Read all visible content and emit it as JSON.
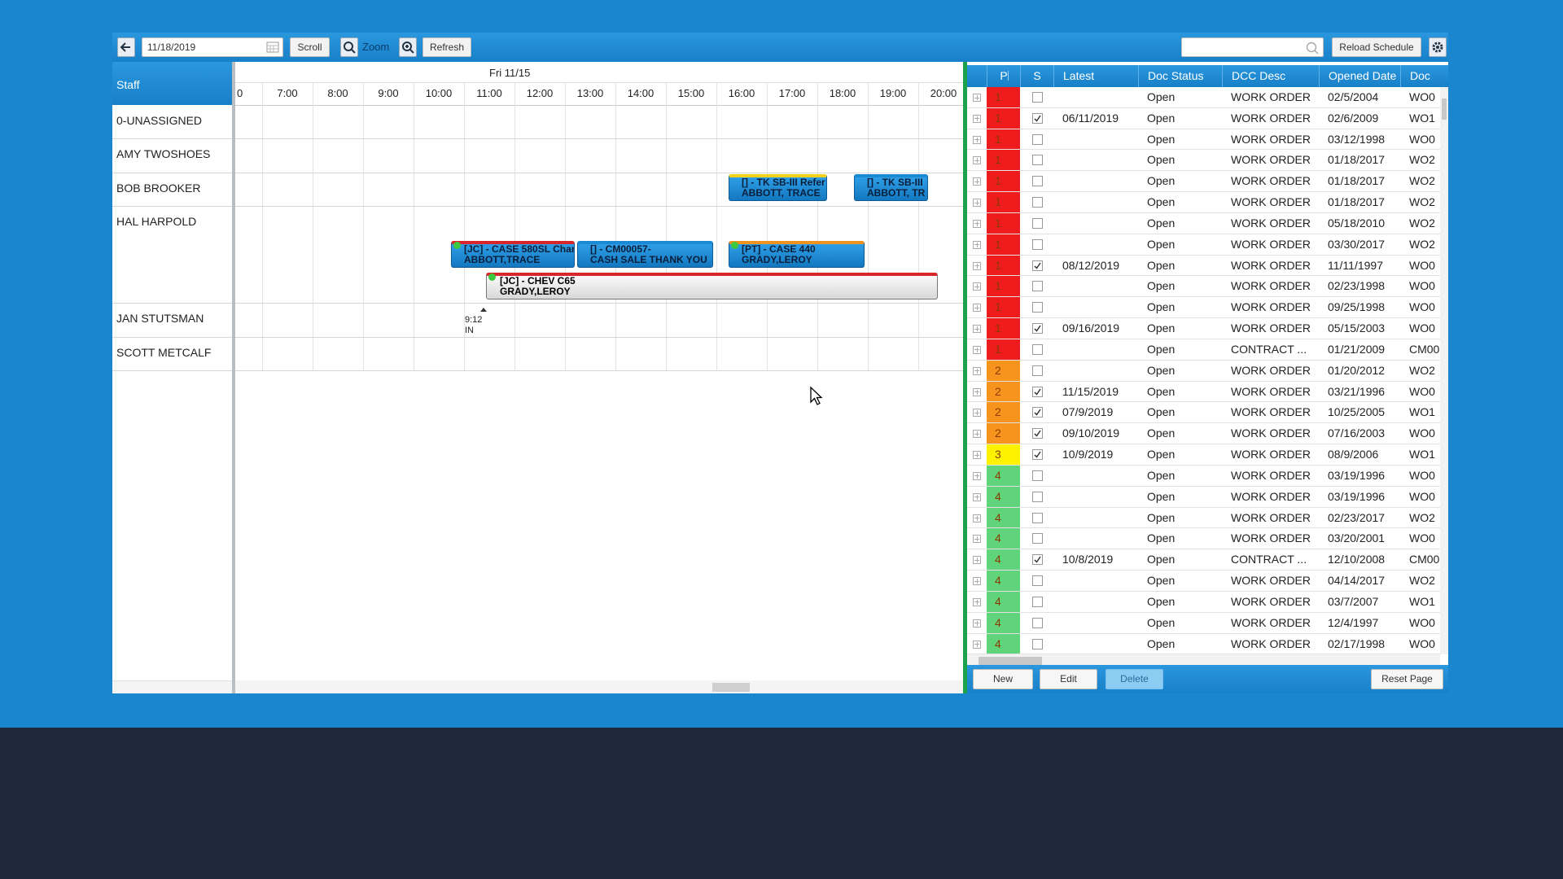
{
  "toolbar": {
    "date": "11/18/2019",
    "scroll": "Scroll",
    "zoom": "Zoom",
    "refresh": "Refresh",
    "reload": "Reload Schedule"
  },
  "schedule": {
    "staff_header": "Staff",
    "day": "Fri 11/15",
    "hours": [
      "0",
      "7:00",
      "8:00",
      "9:00",
      "10:00",
      "11:00",
      "12:00",
      "13:00",
      "14:00",
      "15:00",
      "16:00",
      "17:00",
      "18:00",
      "19:00",
      "20:00"
    ],
    "staff": [
      "0-UNASSIGNED",
      "AMY TWOSHOES",
      "BOB BROOKER",
      "HAL HARPOLD",
      "JAN STUTSMAN",
      "SCOTT METCALF"
    ],
    "events": [
      {
        "line1": "[] - TK SB-III Refer",
        "line2": "ABBOTT, TRACE",
        "top_color": "#f2d21b",
        "style": "blue"
      },
      {
        "line1": "[] - TK SB-III",
        "line2": "ABBOTT, TR",
        "top_color": "#1a8ad4",
        "style": "blue"
      },
      {
        "line1": "[JC] - CASE 580SL Char",
        "line2": "ABBOTT,TRACE",
        "top_color": "#d8262b",
        "style": "blue"
      },
      {
        "line1": "[] - CM00057-",
        "line2": "CASH SALE THANK YOU",
        "top_color": "#1a8ad4",
        "style": "blue"
      },
      {
        "line1": "[PT] - CASE 440",
        "line2": "GRADY,LEROY",
        "top_color": "#f0921e",
        "style": "blue"
      },
      {
        "line1": "[JC] - CHEV C65",
        "line2": "GRADY,LEROY",
        "top_color": "#d8262b",
        "style": "white"
      }
    ],
    "marker": {
      "time": "9:12",
      "label": "IN"
    }
  },
  "table": {
    "columns": [
      "P",
      "S",
      "Latest",
      "Doc Status",
      "DCC Desc",
      "Opened Date",
      "Doc"
    ],
    "priority_colors": {
      "1": "#ee1c1c",
      "2": "#f7941d",
      "3": "#fff200",
      "4": "#5fd47b"
    },
    "rows": [
      {
        "p": "1",
        "checked": false,
        "status": "Open",
        "desc": "WORK ORDER",
        "opened": "02/5/2004",
        "doc": "WO0"
      },
      {
        "p": "1",
        "checked": true,
        "latest": "06/11/2019",
        "status": "Open",
        "desc": "WORK ORDER",
        "opened": "02/6/2009",
        "doc": "WO1"
      },
      {
        "p": "1",
        "checked": false,
        "status": "Open",
        "desc": "WORK ORDER",
        "opened": "03/12/1998",
        "doc": "WO0"
      },
      {
        "p": "1",
        "checked": false,
        "status": "Open",
        "desc": "WORK ORDER",
        "opened": "01/18/2017",
        "doc": "WO2"
      },
      {
        "p": "1",
        "checked": false,
        "status": "Open",
        "desc": "WORK ORDER",
        "opened": "01/18/2017",
        "doc": "WO2"
      },
      {
        "p": "1",
        "checked": false,
        "status": "Open",
        "desc": "WORK ORDER",
        "opened": "01/18/2017",
        "doc": "WO2"
      },
      {
        "p": "1",
        "checked": false,
        "status": "Open",
        "desc": "WORK ORDER",
        "opened": "05/18/2010",
        "doc": "WO2"
      },
      {
        "p": "1",
        "checked": false,
        "status": "Open",
        "desc": "WORK ORDER",
        "opened": "03/30/2017",
        "doc": "WO2"
      },
      {
        "p": "1",
        "checked": true,
        "latest": "08/12/2019",
        "status": "Open",
        "desc": "WORK ORDER",
        "opened": "11/11/1997",
        "doc": "WO0"
      },
      {
        "p": "1",
        "checked": false,
        "status": "Open",
        "desc": "WORK ORDER",
        "opened": "02/23/1998",
        "doc": "WO0"
      },
      {
        "p": "1",
        "checked": false,
        "status": "Open",
        "desc": "WORK ORDER",
        "opened": "09/25/1998",
        "doc": "WO0"
      },
      {
        "p": "1",
        "checked": true,
        "latest": "09/16/2019",
        "status": "Open",
        "desc": "WORK ORDER",
        "opened": "05/15/2003",
        "doc": "WO0"
      },
      {
        "p": "1",
        "checked": false,
        "status": "Open",
        "desc": "CONTRACT ...",
        "opened": "01/21/2009",
        "doc": "CM00"
      },
      {
        "p": "2",
        "checked": false,
        "status": "Open",
        "desc": "WORK ORDER",
        "opened": "01/20/2012",
        "doc": "WO2"
      },
      {
        "p": "2",
        "checked": true,
        "latest": "11/15/2019",
        "status": "Open",
        "desc": "WORK ORDER",
        "opened": "03/21/1996",
        "doc": "WO0"
      },
      {
        "p": "2",
        "checked": true,
        "latest": "07/9/2019",
        "status": "Open",
        "desc": "WORK ORDER",
        "opened": "10/25/2005",
        "doc": "WO1"
      },
      {
        "p": "2",
        "checked": true,
        "latest": "09/10/2019",
        "status": "Open",
        "desc": "WORK ORDER",
        "opened": "07/16/2003",
        "doc": "WO0"
      },
      {
        "p": "3",
        "checked": true,
        "latest": "10/9/2019",
        "status": "Open",
        "desc": "WORK ORDER",
        "opened": "08/9/2006",
        "doc": "WO1"
      },
      {
        "p": "4",
        "checked": false,
        "status": "Open",
        "desc": "WORK ORDER",
        "opened": "03/19/1996",
        "doc": "WO0"
      },
      {
        "p": "4",
        "checked": false,
        "status": "Open",
        "desc": "WORK ORDER",
        "opened": "03/19/1996",
        "doc": "WO0"
      },
      {
        "p": "4",
        "checked": false,
        "status": "Open",
        "desc": "WORK ORDER",
        "opened": "02/23/2017",
        "doc": "WO2"
      },
      {
        "p": "4",
        "checked": false,
        "status": "Open",
        "desc": "WORK ORDER",
        "opened": "03/20/2001",
        "doc": "WO0"
      },
      {
        "p": "4",
        "checked": true,
        "latest": "10/8/2019",
        "status": "Open",
        "desc": "CONTRACT ...",
        "opened": "12/10/2008",
        "doc": "CM00"
      },
      {
        "p": "4",
        "checked": false,
        "status": "Open",
        "desc": "WORK ORDER",
        "opened": "04/14/2017",
        "doc": "WO2"
      },
      {
        "p": "4",
        "checked": false,
        "status": "Open",
        "desc": "WORK ORDER",
        "opened": "03/7/2007",
        "doc": "WO1"
      },
      {
        "p": "4",
        "checked": false,
        "status": "Open",
        "desc": "WORK ORDER",
        "opened": "12/4/1997",
        "doc": "WO0"
      },
      {
        "p": "4",
        "checked": false,
        "status": "Open",
        "desc": "WORK ORDER",
        "opened": "02/17/1998",
        "doc": "WO0"
      }
    ]
  },
  "buttons": {
    "new": "New",
    "edit": "Edit",
    "delete": "Delete",
    "reset": "Reset Page"
  }
}
